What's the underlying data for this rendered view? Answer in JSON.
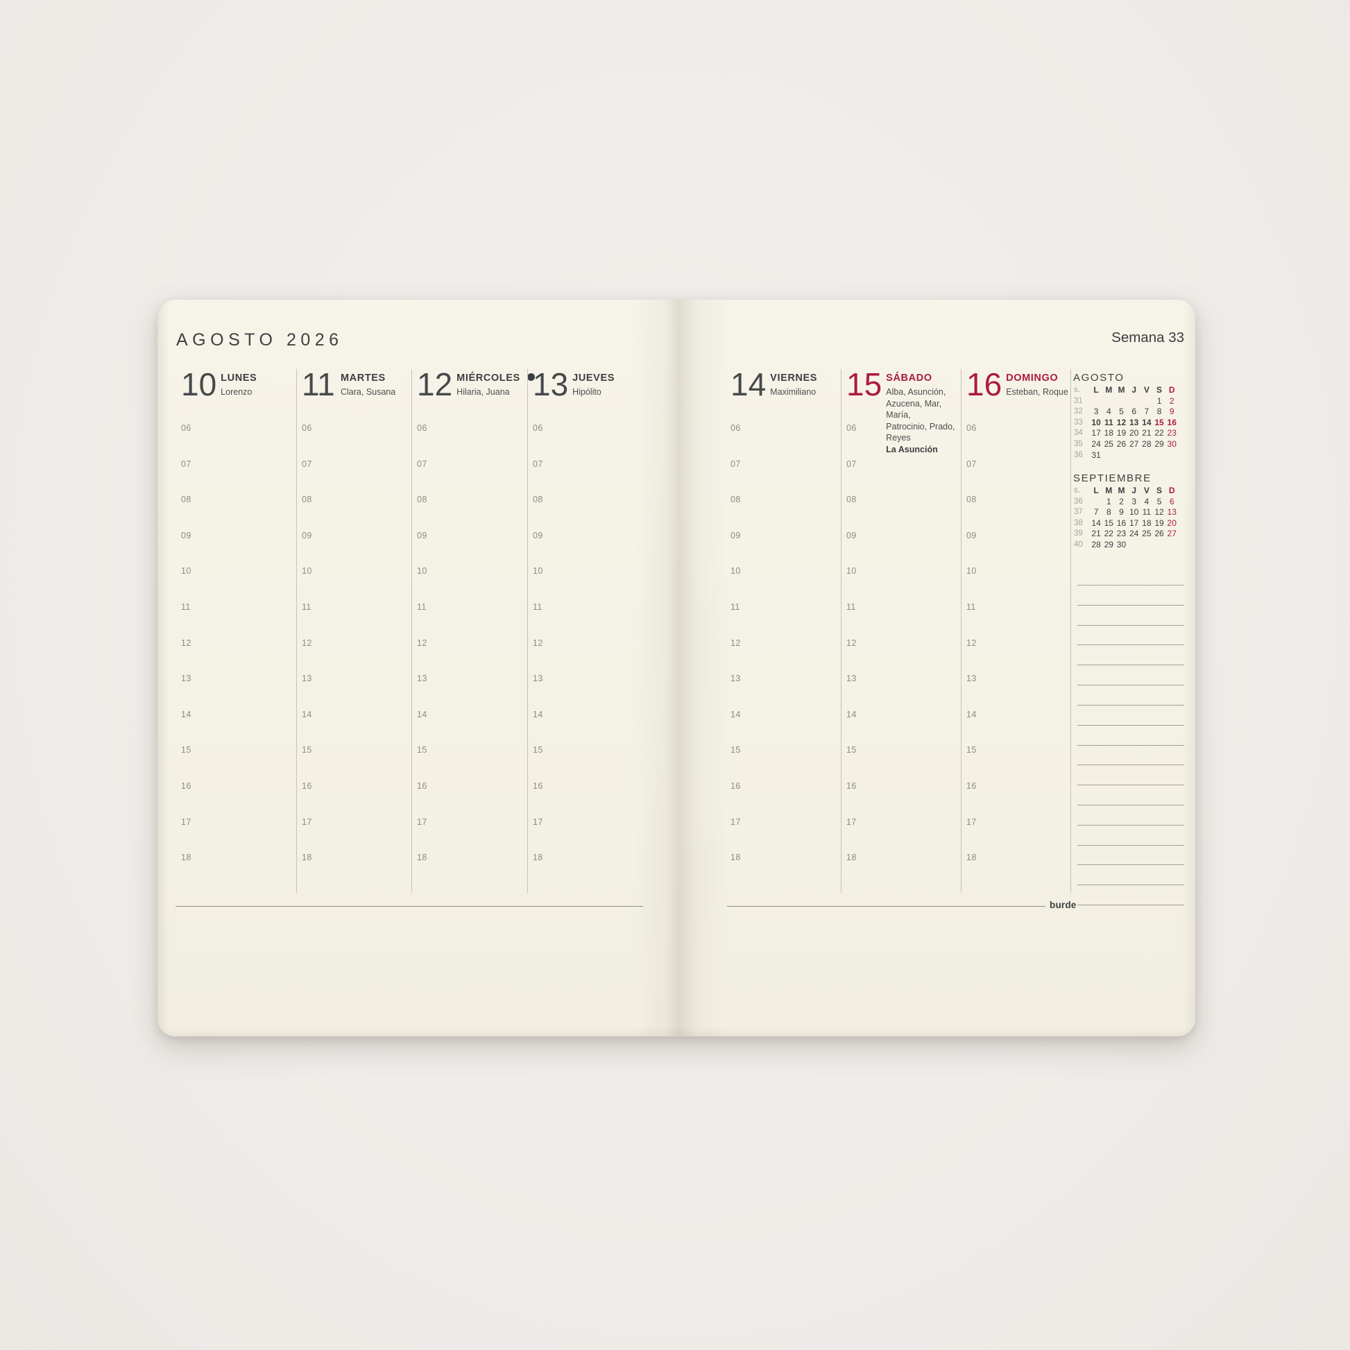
{
  "header": {
    "month_title": "AGOSTO 2026",
    "week_label": "Semana 33",
    "brand": "burde"
  },
  "colors": {
    "accent_red": "#ab1c41",
    "page_cream": "#f4f1e5",
    "text_dark": "#3c3f41",
    "text_gray": "#8e8b82"
  },
  "hours": [
    "06",
    "07",
    "08",
    "09",
    "10",
    "11",
    "12",
    "13",
    "14",
    "15",
    "16",
    "17",
    "18"
  ],
  "days": [
    {
      "number": "10",
      "name": "LUNES",
      "saints_lines": [
        "Lorenzo"
      ],
      "red": false,
      "moon": false
    },
    {
      "number": "11",
      "name": "MARTES",
      "saints_lines": [
        "Clara, Susana"
      ],
      "red": false,
      "moon": false
    },
    {
      "number": "12",
      "name": "MIÉRCOLES",
      "saints_lines": [
        "Hilaria, Juana"
      ],
      "red": false,
      "moon": true
    },
    {
      "number": "13",
      "name": "JUEVES",
      "saints_lines": [
        "Hipólito"
      ],
      "red": false,
      "moon": false
    },
    {
      "number": "14",
      "name": "VIERNES",
      "saints_lines": [
        "Maximiliano"
      ],
      "red": false,
      "moon": false
    },
    {
      "number": "15",
      "name": "SÁBADO",
      "saints_lines": [
        "Alba, Asunción,",
        "Azucena, Mar, María,",
        "Patrocinio, Prado, Reyes"
      ],
      "holiday": "La Asunción",
      "red": true,
      "moon": false
    },
    {
      "number": "16",
      "name": "DOMINGO",
      "saints_lines": [
        "Esteban, Roque"
      ],
      "red": true,
      "moon": false
    }
  ],
  "mini_calendars": [
    {
      "title": "AGOSTO",
      "dow": [
        "s.",
        "L",
        "M",
        "M",
        "J",
        "V",
        "S",
        "D"
      ],
      "weeks": [
        {
          "wk": "31",
          "days": [
            {
              "t": ""
            },
            {
              "t": ""
            },
            {
              "t": ""
            },
            {
              "t": ""
            },
            {
              "t": ""
            },
            {
              "t": "1"
            },
            {
              "t": "2",
              "c": "r"
            }
          ]
        },
        {
          "wk": "32",
          "days": [
            {
              "t": "3"
            },
            {
              "t": "4"
            },
            {
              "t": "5"
            },
            {
              "t": "6"
            },
            {
              "t": "7"
            },
            {
              "t": "8"
            },
            {
              "t": "9",
              "c": "r"
            }
          ]
        },
        {
          "wk": "33",
          "days": [
            {
              "t": "10",
              "c": "b"
            },
            {
              "t": "11",
              "c": "b"
            },
            {
              "t": "12",
              "c": "b"
            },
            {
              "t": "13",
              "c": "b"
            },
            {
              "t": "14",
              "c": "b"
            },
            {
              "t": "15",
              "c": "rb"
            },
            {
              "t": "16",
              "c": "rb"
            }
          ]
        },
        {
          "wk": "34",
          "days": [
            {
              "t": "17"
            },
            {
              "t": "18"
            },
            {
              "t": "19"
            },
            {
              "t": "20"
            },
            {
              "t": "21"
            },
            {
              "t": "22"
            },
            {
              "t": "23",
              "c": "r"
            }
          ]
        },
        {
          "wk": "35",
          "days": [
            {
              "t": "24"
            },
            {
              "t": "25"
            },
            {
              "t": "26"
            },
            {
              "t": "27"
            },
            {
              "t": "28"
            },
            {
              "t": "29"
            },
            {
              "t": "30",
              "c": "r"
            }
          ]
        },
        {
          "wk": "36",
          "days": [
            {
              "t": "31"
            },
            {
              "t": ""
            },
            {
              "t": ""
            },
            {
              "t": ""
            },
            {
              "t": ""
            },
            {
              "t": ""
            },
            {
              "t": ""
            }
          ]
        }
      ]
    },
    {
      "title": "SEPTIEMBRE",
      "dow": [
        "s.",
        "L",
        "M",
        "M",
        "J",
        "V",
        "S",
        "D"
      ],
      "weeks": [
        {
          "wk": "36",
          "days": [
            {
              "t": ""
            },
            {
              "t": "1"
            },
            {
              "t": "2"
            },
            {
              "t": "3"
            },
            {
              "t": "4"
            },
            {
              "t": "5"
            },
            {
              "t": "6",
              "c": "r"
            }
          ]
        },
        {
          "wk": "37",
          "days": [
            {
              "t": "7"
            },
            {
              "t": "8"
            },
            {
              "t": "9"
            },
            {
              "t": "10"
            },
            {
              "t": "11"
            },
            {
              "t": "12"
            },
            {
              "t": "13",
              "c": "r"
            }
          ]
        },
        {
          "wk": "38",
          "days": [
            {
              "t": "14"
            },
            {
              "t": "15"
            },
            {
              "t": "16"
            },
            {
              "t": "17"
            },
            {
              "t": "18"
            },
            {
              "t": "19"
            },
            {
              "t": "20",
              "c": "r"
            }
          ]
        },
        {
          "wk": "39",
          "days": [
            {
              "t": "21"
            },
            {
              "t": "22"
            },
            {
              "t": "23"
            },
            {
              "t": "24"
            },
            {
              "t": "25"
            },
            {
              "t": "26"
            },
            {
              "t": "27",
              "c": "r"
            }
          ]
        },
        {
          "wk": "40",
          "days": [
            {
              "t": "28"
            },
            {
              "t": "29"
            },
            {
              "t": "30"
            },
            {
              "t": ""
            },
            {
              "t": ""
            },
            {
              "t": ""
            },
            {
              "t": ""
            }
          ]
        }
      ]
    }
  ]
}
